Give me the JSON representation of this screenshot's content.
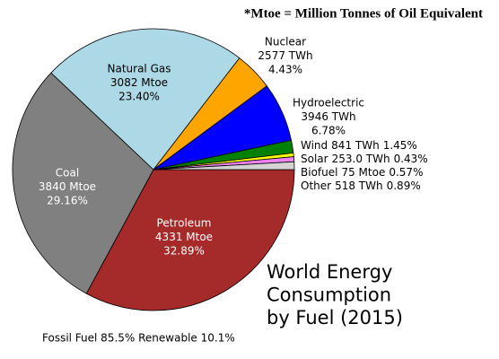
{
  "chart_data": {
    "type": "pie",
    "title": [
      "World Energy",
      "Consumption",
      "by Fuel (2015)"
    ],
    "footnote": "*Mtoe = Million Tonnes of Oil Equivalent",
    "annotation": "Fossil Fuel 85.5% Renewable 10.1%",
    "categories": [
      "Petroleum",
      "Coal",
      "Natural Gas",
      "Nuclear",
      "Hydroelectric",
      "Wind",
      "Solar",
      "Biofuel",
      "Other"
    ],
    "amounts": [
      "4331 Mtoe",
      "3840 Mtoe",
      "3082 Mtoe",
      "2577 TWh",
      "3946 TWh",
      "841 TWh",
      "253.0 TWh",
      "75 Mtoe",
      "518 TWh"
    ],
    "values": [
      32.89,
      29.16,
      23.4,
      4.43,
      6.78,
      1.45,
      0.43,
      0.57,
      0.89
    ],
    "value_labels": [
      "32.89%",
      "29.16%",
      "23.40%",
      "4.43%",
      "6.78%",
      "1.45%",
      "0.43%",
      "0.57%",
      "0.89%"
    ],
    "colors": [
      "#a52a2a",
      "#808080",
      "#add8e6",
      "#ffa500",
      "#0000ff",
      "#008000",
      "#ffff00",
      "#ee82ee",
      "#d3d3d3"
    ]
  }
}
